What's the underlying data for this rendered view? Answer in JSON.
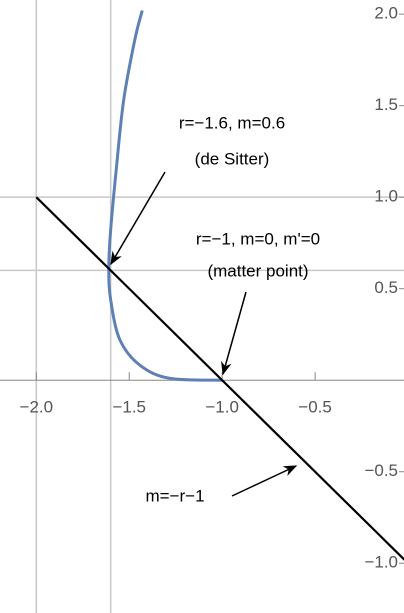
{
  "chart_data": {
    "type": "line",
    "xlim": [
      -2.19,
      0
    ],
    "ylim": [
      -1.25,
      2.05
    ],
    "xticks": [
      {
        "value": -2.0,
        "label": "−2.0"
      },
      {
        "value": -1.5,
        "label": "−1.5"
      },
      {
        "value": -1.0,
        "label": "−1.0"
      },
      {
        "value": -0.5,
        "label": "−0.5"
      }
    ],
    "yticks": [
      {
        "value": -1.0,
        "label": "−1.0"
      },
      {
        "value": -0.5,
        "label": "−0.5"
      },
      0.5,
      {
        "value": 1.0,
        "label": "1.0"
      },
      1.5,
      {
        "value": 2.0,
        "label": "2.0"
      }
    ],
    "grid_x": [
      -2,
      -1.6
    ],
    "grid_y": [
      0.6,
      1
    ],
    "series": [
      {
        "color": "#5e81b5",
        "x": [
          -1,
          -1.28,
          -1.44,
          -1.55,
          -1.6,
          -1.61,
          -1.6,
          -1.57,
          -1.53,
          -1.47,
          -1.43
        ],
        "values": [
          0,
          0.01,
          0.08,
          0.22,
          0.44,
          0.61,
          0.82,
          1.15,
          1.53,
          1.86,
          2.02
        ]
      },
      {
        "color": "#000000",
        "x": [
          -2,
          0
        ],
        "values": [
          1,
          -1
        ]
      }
    ],
    "annotations": [
      "r=−1.6, m=0.6",
      "(de Sitter)",
      "r=−1, m=0, m'=0",
      "(matter point)",
      "m=−r−1"
    ]
  }
}
